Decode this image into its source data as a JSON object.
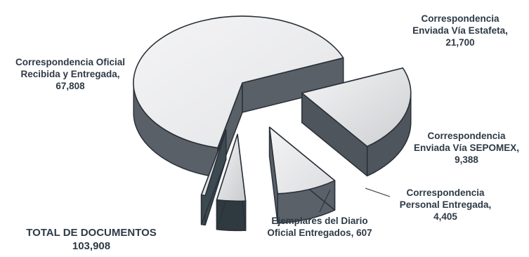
{
  "chart_data": {
    "type": "pie",
    "style": "3d-exploded",
    "slices": [
      {
        "label_lines": [
          "Correspondencia Oficial",
          "Recibida y Entregada,",
          "67,808"
        ],
        "value": 67808,
        "top_color": "#e3e4e6",
        "side_color": "#5a6068"
      },
      {
        "label_lines": [
          "Correspondencia",
          "Enviada Vía Estafeta,",
          "21,700"
        ],
        "value": 21700,
        "top_color": "#cdcfd2",
        "side_color": "#4f555c"
      },
      {
        "label_lines": [
          "Correspondencia",
          "Enviada Vía SEPOMEX,",
          "9,388"
        ],
        "value": 9388,
        "top_color": "#dcdde0",
        "side_color": "#5b6168"
      },
      {
        "label_lines": [
          "Correspondencia",
          "Personal Entregada,",
          "4,405"
        ],
        "value": 4405,
        "top_color": "#c9cbce",
        "side_color": "#2f3a40"
      },
      {
        "label_lines": [
          "Ejemplares del Diario",
          "Oficial Entregados, 607"
        ],
        "value": 607,
        "top_color": "#d5d7da",
        "side_color": "#3d4a52"
      }
    ],
    "total": {
      "label": "TOTAL DE DOCUMENTOS",
      "value": "103,908"
    }
  }
}
